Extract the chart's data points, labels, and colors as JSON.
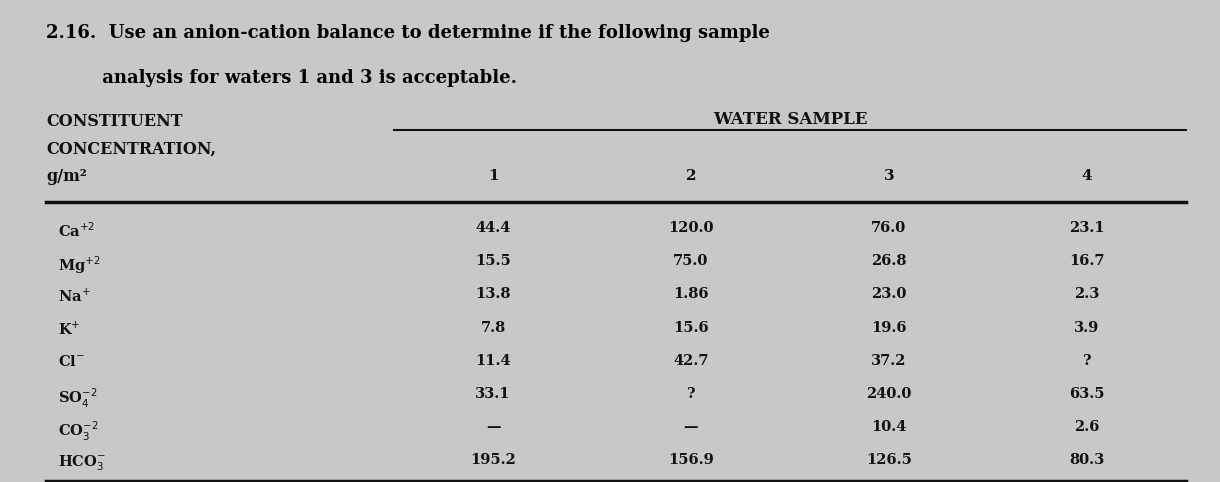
{
  "title_line1": "2.16.  Use an anion-cation balance to determine if the following sample",
  "title_line2": "         analysis for waters 1 and 3 is acceptable.",
  "water_sample_label": "WATER SAMPLE",
  "col_numbers": [
    "1",
    "2",
    "3",
    "4"
  ],
  "header_left_line1": "CONSTITUENT",
  "header_left_line2": "CONCENTRATION,",
  "header_left_line3": "g/m²",
  "rows": [
    {
      "constituent": "Ca$^{+2}$",
      "vals": [
        "44.4",
        "120.0",
        "76.0",
        "23.1"
      ]
    },
    {
      "constituent": "Mg$^{+2}$",
      "vals": [
        "15.5",
        "75.0",
        "26.8",
        "16.7"
      ]
    },
    {
      "constituent": "Na$^{+}$",
      "vals": [
        "13.8",
        "1.86",
        "23.0",
        "2.3"
      ]
    },
    {
      "constituent": "K$^{+}$",
      "vals": [
        "7.8",
        "15.6",
        "19.6",
        "3.9"
      ]
    },
    {
      "constituent": "Cl$^{-}$",
      "vals": [
        "11.4",
        "42.7",
        "37.2",
        "?"
      ]
    },
    {
      "constituent": "SO$_{4}^{-2}$",
      "vals": [
        "33.1",
        "?",
        "240.0",
        "63.5"
      ]
    },
    {
      "constituent": "CO$_{3}^{-2}$",
      "vals": [
        "—",
        "—",
        "10.4",
        "2.6"
      ]
    },
    {
      "constituent": "HCO$_{3}^{-}$",
      "vals": [
        "195.2",
        "156.9",
        "126.5",
        "80.3"
      ]
    }
  ],
  "bg_color": "#c8c8c8",
  "text_color": "#111111",
  "title_color": "#000000",
  "line_color": "#111111",
  "table_bg": "#c8c8c8"
}
